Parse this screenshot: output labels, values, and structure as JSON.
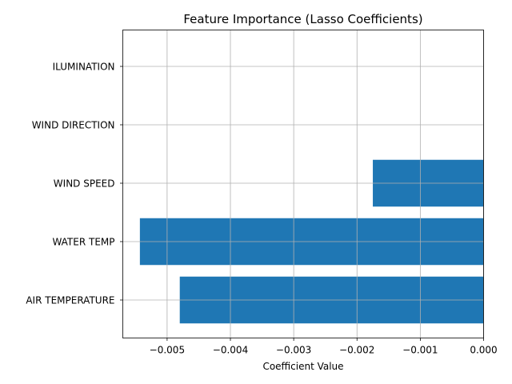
{
  "chart_data": {
    "type": "bar",
    "orientation": "horizontal",
    "title": "Feature Importance (Lasso Coefficients)",
    "xlabel": "Coefficient Value",
    "ylabel": "",
    "categories": [
      "AIR TEMPERATURE",
      "WATER TEMP",
      "WIND SPEED",
      "WIND DIRECTION",
      "ILUMINATION"
    ],
    "values": [
      -0.0048,
      -0.00543,
      -0.00175,
      0,
      0
    ],
    "xlim": [
      -0.0057,
      0
    ],
    "xticks": [
      -0.005,
      -0.004,
      -0.003,
      -0.002,
      -0.001,
      0.0
    ],
    "xtick_labels": [
      "−0.005",
      "−0.004",
      "−0.003",
      "−0.002",
      "−0.001",
      "0.000"
    ],
    "grid": true,
    "bar_color": "#1f77b4",
    "grid_color": "#b0b0b0"
  }
}
